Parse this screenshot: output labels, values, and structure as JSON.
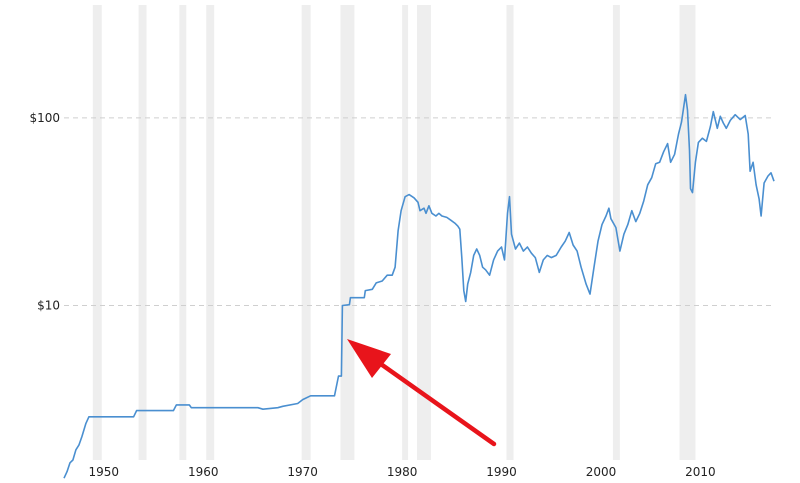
{
  "chart_data": {
    "type": "line",
    "y_scale": "log",
    "ylim": [
      1.5,
      400
    ],
    "xlim": [
      1946.0,
      2017.5
    ],
    "y_ticks": [
      {
        "value": 10,
        "label": "$10"
      },
      {
        "value": 100,
        "label": "$100"
      },
      {
        "value": 1000,
        "label": ""
      }
    ],
    "x_ticks": [
      {
        "value": 1950,
        "label": "1950"
      },
      {
        "value": 1960,
        "label": "1960"
      },
      {
        "value": 1970,
        "label": "1970"
      },
      {
        "value": 1980,
        "label": "1980"
      },
      {
        "value": 1990,
        "label": "1990"
      },
      {
        "value": 2000,
        "label": "2000"
      },
      {
        "value": 2010,
        "label": "2010"
      }
    ],
    "grid": "horizontal dashed",
    "legend": "none",
    "recessions": [
      [
        1948.9,
        1949.8
      ],
      [
        1953.5,
        1954.3
      ],
      [
        1957.6,
        1958.3
      ],
      [
        1960.3,
        1961.1
      ],
      [
        1969.9,
        1970.8
      ],
      [
        1973.8,
        1975.2
      ],
      [
        1980.0,
        1980.6
      ],
      [
        1981.5,
        1982.9
      ],
      [
        1990.5,
        1991.2
      ],
      [
        2001.2,
        2001.9
      ],
      [
        2007.9,
        2009.5
      ]
    ],
    "series": [
      {
        "color": "#4a8fd0",
        "points": [
          [
            1946.0,
            1.2
          ],
          [
            1946.3,
            1.3
          ],
          [
            1946.6,
            1.45
          ],
          [
            1946.9,
            1.5
          ],
          [
            1947.2,
            1.7
          ],
          [
            1947.5,
            1.8
          ],
          [
            1947.8,
            2.0
          ],
          [
            1948.2,
            2.35
          ],
          [
            1948.5,
            2.55
          ],
          [
            1953.0,
            2.55
          ],
          [
            1953.3,
            2.75
          ],
          [
            1957.0,
            2.75
          ],
          [
            1957.3,
            2.95
          ],
          [
            1958.6,
            2.95
          ],
          [
            1958.8,
            2.85
          ],
          [
            1965.5,
            2.85
          ],
          [
            1966.0,
            2.8
          ],
          [
            1967.5,
            2.85
          ],
          [
            1968.0,
            2.9
          ],
          [
            1969.5,
            3.0
          ],
          [
            1970.0,
            3.15
          ],
          [
            1970.8,
            3.3
          ],
          [
            1973.2,
            3.3
          ],
          [
            1973.6,
            4.2
          ],
          [
            1973.9,
            4.2
          ],
          [
            1974.0,
            10.0
          ],
          [
            1974.7,
            10.1
          ],
          [
            1974.8,
            11.0
          ],
          [
            1976.2,
            11.0
          ],
          [
            1976.3,
            12.0
          ],
          [
            1977.0,
            12.2
          ],
          [
            1977.4,
            13.2
          ],
          [
            1978.0,
            13.5
          ],
          [
            1978.5,
            14.5
          ],
          [
            1979.0,
            14.5
          ],
          [
            1979.3,
            16.0
          ],
          [
            1979.6,
            25.0
          ],
          [
            1979.9,
            32.0
          ],
          [
            1980.3,
            38.0
          ],
          [
            1980.7,
            39.0
          ],
          [
            1981.2,
            37.5
          ],
          [
            1981.6,
            35.5
          ],
          [
            1981.8,
            32.0
          ],
          [
            1982.2,
            33.0
          ],
          [
            1982.4,
            31.0
          ],
          [
            1982.7,
            34.0
          ],
          [
            1983.0,
            31.0
          ],
          [
            1983.4,
            30.0
          ],
          [
            1983.7,
            31.0
          ],
          [
            1984.0,
            30.0
          ],
          [
            1984.5,
            29.5
          ],
          [
            1984.9,
            28.5
          ],
          [
            1985.3,
            27.5
          ],
          [
            1985.6,
            26.5
          ],
          [
            1985.8,
            25.5
          ],
          [
            1986.0,
            18.0
          ],
          [
            1986.2,
            12.0
          ],
          [
            1986.4,
            10.5
          ],
          [
            1986.6,
            13.0
          ],
          [
            1986.9,
            15.0
          ],
          [
            1987.2,
            18.5
          ],
          [
            1987.5,
            20.0
          ],
          [
            1987.8,
            18.5
          ],
          [
            1988.1,
            16.0
          ],
          [
            1988.4,
            15.5
          ],
          [
            1988.8,
            14.5
          ],
          [
            1989.2,
            17.5
          ],
          [
            1989.6,
            19.5
          ],
          [
            1990.0,
            20.5
          ],
          [
            1990.3,
            17.5
          ],
          [
            1990.6,
            31.0
          ],
          [
            1990.8,
            38.0
          ],
          [
            1991.0,
            24.0
          ],
          [
            1991.4,
            20.0
          ],
          [
            1991.8,
            21.5
          ],
          [
            1992.2,
            19.5
          ],
          [
            1992.6,
            20.5
          ],
          [
            1993.0,
            19.0
          ],
          [
            1993.4,
            18.0
          ],
          [
            1993.8,
            15.0
          ],
          [
            1994.2,
            17.5
          ],
          [
            1994.6,
            18.5
          ],
          [
            1995.0,
            18.0
          ],
          [
            1995.5,
            18.5
          ],
          [
            1996.0,
            20.5
          ],
          [
            1996.4,
            22.0
          ],
          [
            1996.8,
            24.5
          ],
          [
            1997.2,
            21.0
          ],
          [
            1997.6,
            19.5
          ],
          [
            1998.0,
            16.0
          ],
          [
            1998.5,
            13.0
          ],
          [
            1998.9,
            11.5
          ],
          [
            1999.3,
            16.0
          ],
          [
            1999.7,
            22.0
          ],
          [
            2000.1,
            27.0
          ],
          [
            2000.5,
            30.0
          ],
          [
            2000.8,
            33.0
          ],
          [
            2001.0,
            29.0
          ],
          [
            2001.5,
            26.0
          ],
          [
            2001.9,
            19.5
          ],
          [
            2002.3,
            24.0
          ],
          [
            2002.7,
            27.0
          ],
          [
            2003.1,
            32.0
          ],
          [
            2003.5,
            28.0
          ],
          [
            2003.9,
            31.0
          ],
          [
            2004.3,
            36.0
          ],
          [
            2004.7,
            44.0
          ],
          [
            2005.1,
            48.0
          ],
          [
            2005.5,
            57.0
          ],
          [
            2005.9,
            58.0
          ],
          [
            2006.3,
            66.0
          ],
          [
            2006.7,
            73.0
          ],
          [
            2007.0,
            58.0
          ],
          [
            2007.4,
            64.0
          ],
          [
            2007.8,
            82.0
          ],
          [
            2008.1,
            95.0
          ],
          [
            2008.5,
            133.0
          ],
          [
            2008.7,
            110.0
          ],
          [
            2008.9,
            67.0
          ],
          [
            2009.0,
            42.0
          ],
          [
            2009.2,
            40.0
          ],
          [
            2009.5,
            58.0
          ],
          [
            2009.8,
            74.0
          ],
          [
            2010.2,
            78.0
          ],
          [
            2010.6,
            75.0
          ],
          [
            2011.0,
            90.0
          ],
          [
            2011.3,
            108.0
          ],
          [
            2011.7,
            88.0
          ],
          [
            2012.0,
            102.0
          ],
          [
            2012.3,
            94.0
          ],
          [
            2012.6,
            88.0
          ],
          [
            2013.0,
            97.0
          ],
          [
            2013.5,
            104.0
          ],
          [
            2014.0,
            98.0
          ],
          [
            2014.5,
            103.0
          ],
          [
            2014.8,
            82.0
          ],
          [
            2015.0,
            52.0
          ],
          [
            2015.3,
            58.0
          ],
          [
            2015.6,
            44.0
          ],
          [
            2015.9,
            37.0
          ],
          [
            2016.1,
            30.0
          ],
          [
            2016.4,
            45.0
          ],
          [
            2016.8,
            49.0
          ],
          [
            2017.1,
            51.0
          ],
          [
            2017.4,
            46.0
          ]
        ]
      }
    ]
  }
}
